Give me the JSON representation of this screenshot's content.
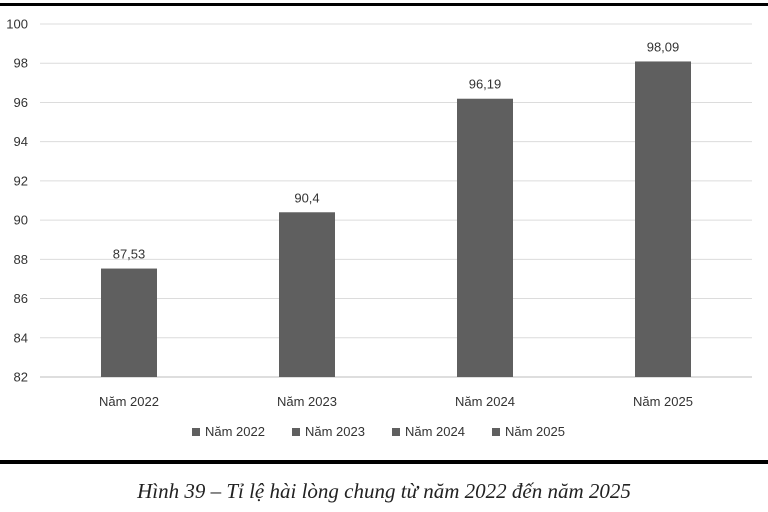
{
  "chart_data": {
    "type": "bar",
    "categories": [
      "Năm 2022",
      "Năm 2023",
      "Năm 2024",
      "Năm 2025"
    ],
    "values": [
      87.53,
      90.4,
      96.19,
      98.09
    ],
    "data_labels": [
      "87,53",
      "90,4",
      "96,19",
      "98,09"
    ],
    "ylim": [
      82,
      100
    ],
    "yticks": [
      82,
      84,
      86,
      88,
      90,
      92,
      94,
      96,
      98,
      100
    ],
    "grid": true,
    "legend_position": "bottom",
    "legend": [
      "Năm 2022",
      "Năm 2023",
      "Năm 2024",
      "Năm 2025"
    ],
    "bar_color": "#5f5f5f",
    "title": "",
    "xlabel": "",
    "ylabel": ""
  },
  "caption": "Hình 39 – Tỉ lệ hài lòng chung từ năm 2022 đến năm 2025"
}
